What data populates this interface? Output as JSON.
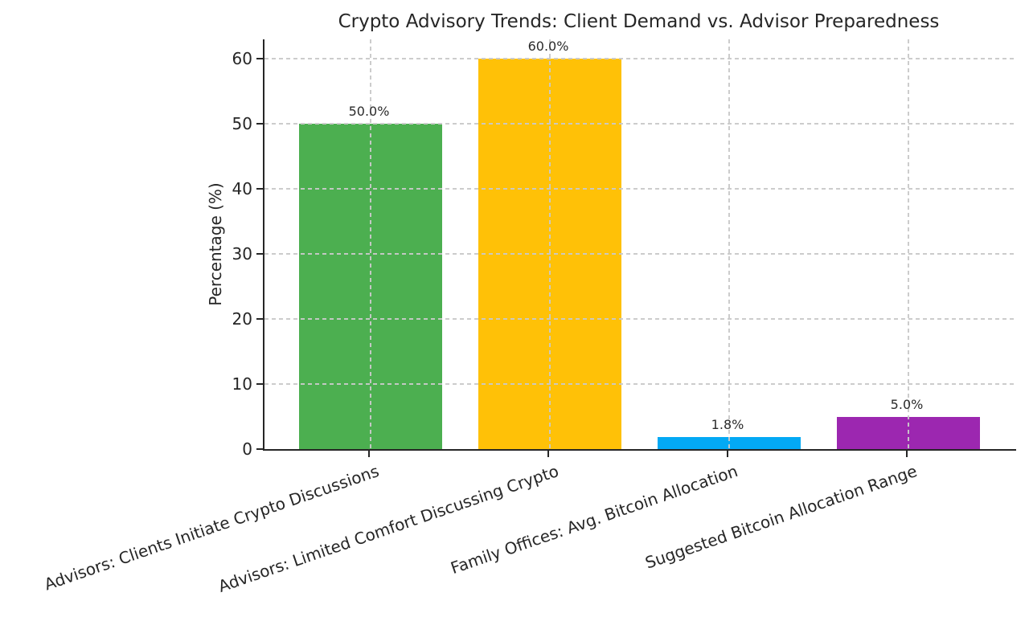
{
  "chart_data": {
    "type": "bar",
    "title": "Crypto Advisory Trends: Client Demand vs. Advisor Preparedness",
    "ylabel": "Percentage (%)",
    "xlabel": "",
    "categories": [
      "Advisors: Clients Initiate Crypto Discussions",
      "Advisors: Limited Comfort Discussing Crypto",
      "Family Offices: Avg. Bitcoin Allocation",
      "Suggested Bitcoin Allocation Range"
    ],
    "values": [
      50.0,
      60.0,
      1.8,
      5.0
    ],
    "value_labels": [
      "50.0%",
      "60.0%",
      "1.8%",
      "5.0%"
    ],
    "bar_colors": [
      "#4CAF50",
      "#FFC107",
      "#03A9F4",
      "#9C27B0"
    ],
    "yticks": [
      0,
      10,
      20,
      30,
      40,
      50,
      60
    ],
    "ylim": [
      0,
      63
    ],
    "grid": {
      "style": "dashed",
      "axes": "both",
      "color": "#c9c9c9",
      "on_top": true
    },
    "legend": null,
    "x_tick_rotation_deg": 19,
    "colors": {
      "axis": "#262626",
      "text": "#262626",
      "value_label": "#2b2b2b"
    }
  }
}
